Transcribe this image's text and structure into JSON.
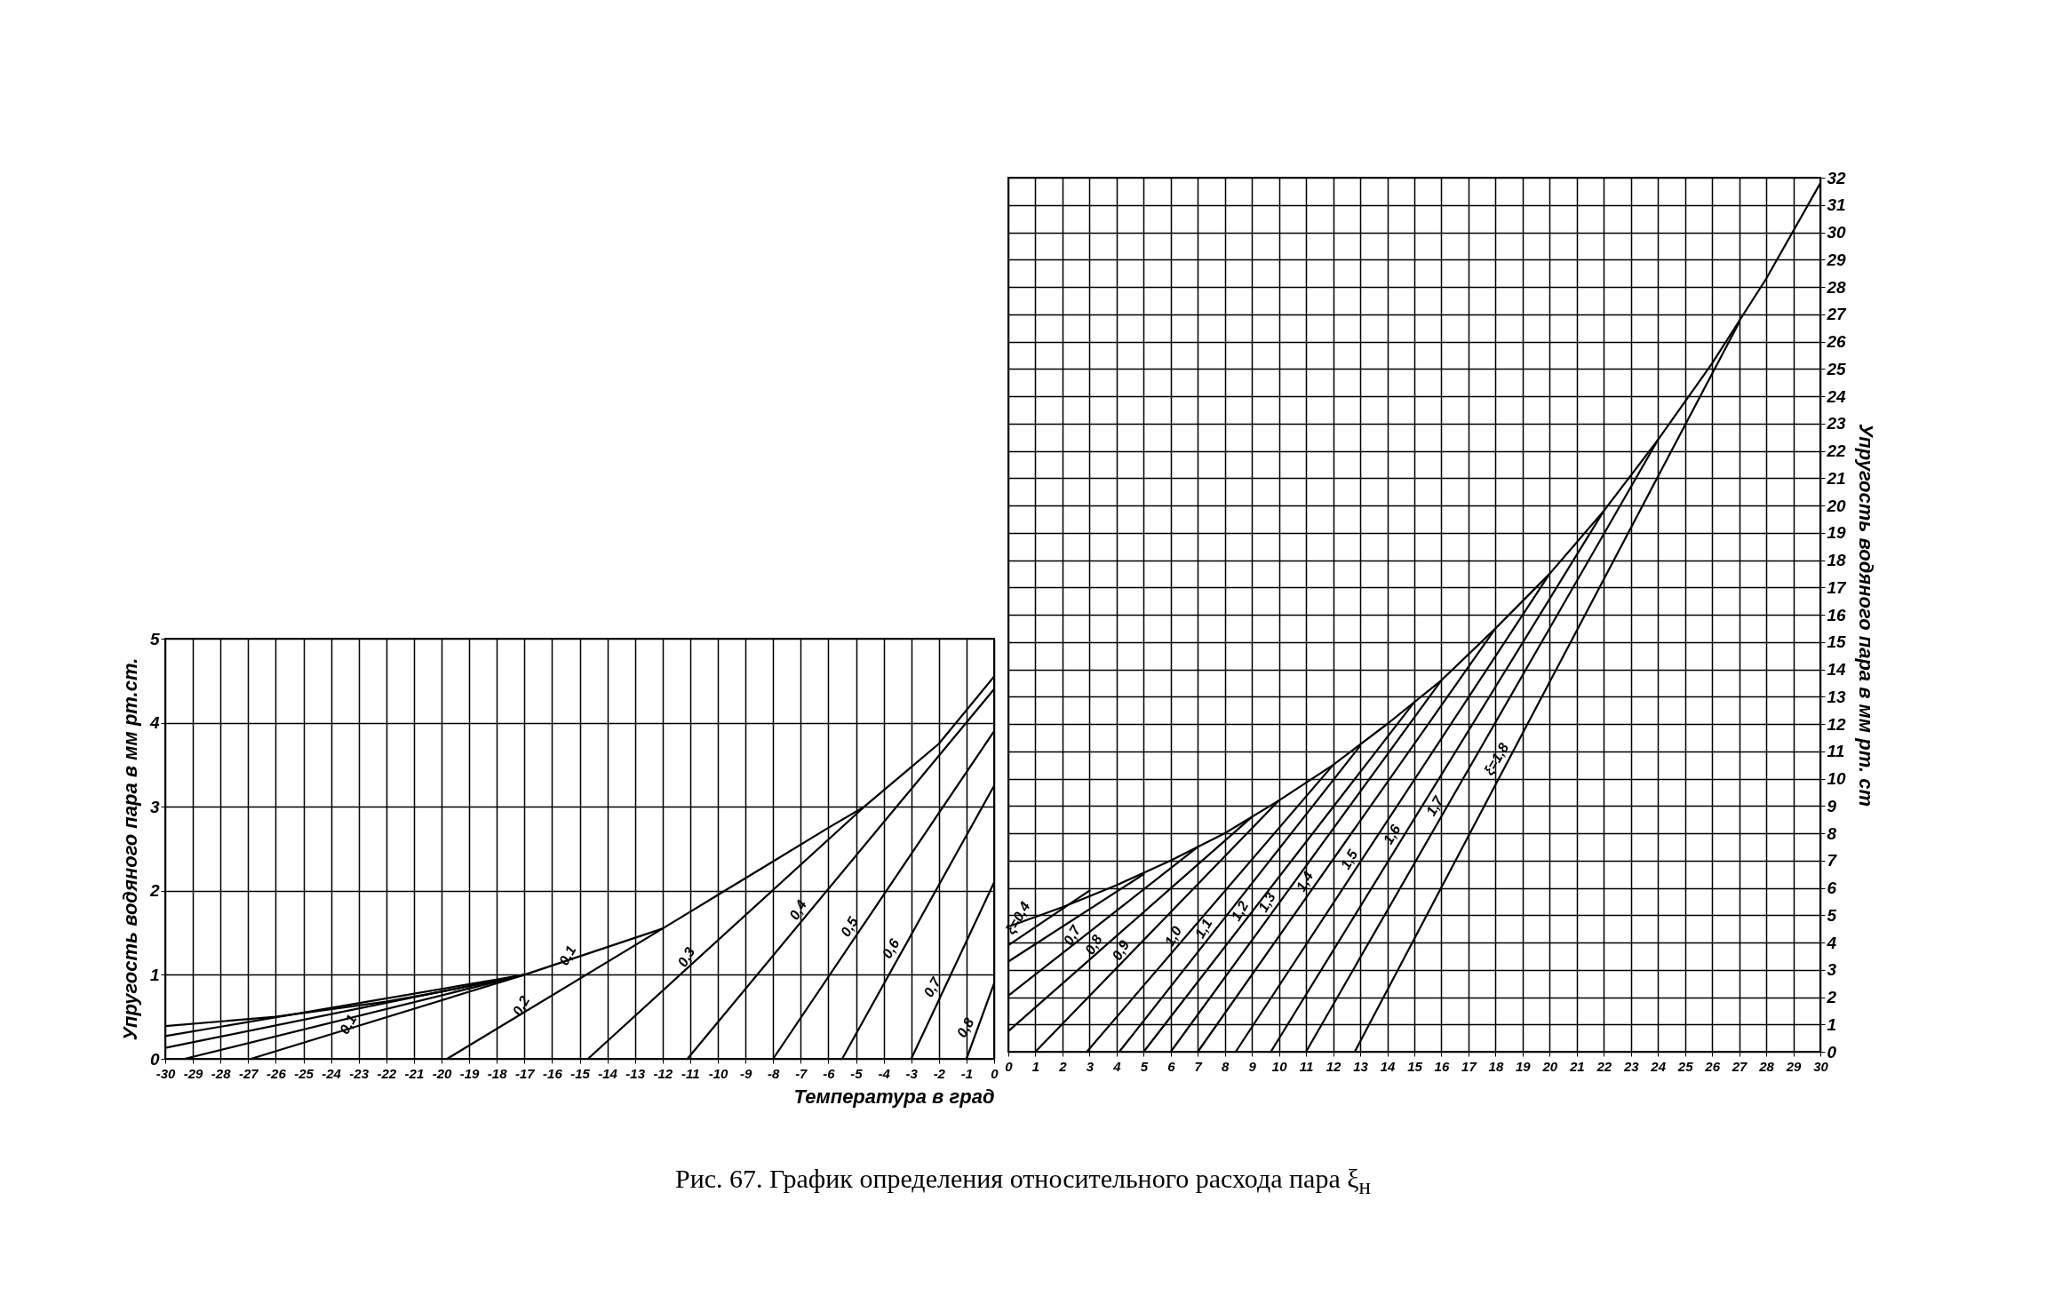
{
  "chart_data": [
    {
      "type": "line",
      "xlabel": "Температура в град",
      "ylabel": "Упругость водяного пара в мм рт.ст.",
      "xlim": [
        -30,
        0
      ],
      "ylim": [
        0,
        5
      ],
      "xticks": [
        -30,
        -29,
        -28,
        -27,
        -26,
        -25,
        -24,
        -23,
        -22,
        -21,
        -20,
        -19,
        -18,
        -17,
        -16,
        -15,
        -14,
        -13,
        -12,
        -11,
        -10,
        -9,
        -8,
        -7,
        -6,
        -5,
        -4,
        -3,
        -2,
        -1,
        0
      ],
      "yticks": [
        0,
        1,
        2,
        3,
        4,
        5
      ],
      "grid": true,
      "series": [
        {
          "name": "0,1",
          "color": "#000000",
          "x": [
            -17,
            -12,
            -10,
            -8,
            -6,
            -4.7,
            -2,
            0,
            -30,
            -26,
            -22,
            -20
          ],
          "values": [
            1.0,
            1.55,
            1.95,
            2.35,
            2.75,
            3.0,
            3.75,
            4.55,
            0.39,
            0.5,
            0.68,
            0.8
          ]
        },
        {
          "color": "#000000",
          "x": [
            -30,
            -17
          ],
          "values": [
            0.27,
            1.0
          ]
        },
        {
          "color": "#000000",
          "x": [
            -30,
            -17
          ],
          "values": [
            0.13,
            1.0
          ]
        },
        {
          "color": "#000000",
          "x": [
            -29.3,
            -17
          ],
          "values": [
            0,
            1.0
          ]
        },
        {
          "name": "0,1",
          "color": "#000000",
          "x": [
            -26.9,
            -17
          ],
          "values": [
            0,
            1.0
          ]
        },
        {
          "name": "0,2",
          "color": "#000000",
          "x": [
            -19.8,
            -12
          ],
          "values": [
            0,
            1.55
          ]
        },
        {
          "name": "0,3",
          "color": "#000000",
          "x": [
            -14.7,
            -4.7
          ],
          "values": [
            0,
            3.0
          ]
        },
        {
          "name": "0,4",
          "color": "#000000",
          "x": [
            -11.1,
            0
          ],
          "values": [
            0,
            4.4
          ]
        },
        {
          "name": "0,5",
          "color": "#000000",
          "x": [
            -8.0,
            0
          ],
          "values": [
            0,
            3.9
          ]
        },
        {
          "name": "0,6",
          "color": "#000000",
          "x": [
            -5.5,
            0
          ],
          "values": [
            0,
            3.25
          ]
        },
        {
          "name": "0,7",
          "color": "#000000",
          "x": [
            -3.0,
            0
          ],
          "values": [
            0,
            2.1
          ]
        },
        {
          "name": "0,8",
          "color": "#000000",
          "x": [
            -1.0,
            0
          ],
          "values": [
            0,
            0.9
          ]
        }
      ],
      "annotations": [
        "Рис. 67. График определения относительного расхода пара ξ$_{н}$"
      ]
    },
    {
      "type": "line",
      "ylabel": "Упругость водяного пара в мм рт. ст",
      "xlim": [
        0,
        30
      ],
      "ylim": [
        0,
        32
      ],
      "xticks": [
        0,
        1,
        2,
        3,
        4,
        5,
        6,
        7,
        8,
        9,
        10,
        11,
        12,
        13,
        14,
        15,
        16,
        17,
        18,
        19,
        20,
        21,
        22,
        23,
        24,
        25,
        26,
        27,
        28,
        29,
        30
      ],
      "yticks": [
        0,
        1,
        2,
        3,
        4,
        5,
        6,
        7,
        8,
        9,
        10,
        11,
        12,
        13,
        14,
        15,
        16,
        17,
        18,
        19,
        20,
        21,
        22,
        23,
        24,
        25,
        26,
        27,
        28,
        29,
        30,
        31,
        32
      ],
      "grid": true,
      "series": [
        {
          "name": "ξ=0,4",
          "color": "#000000",
          "x": [
            0,
            2,
            4,
            6,
            8,
            10,
            12,
            14,
            16,
            18,
            20,
            22,
            24,
            26,
            28,
            30
          ],
          "values": [
            4.58,
            5.29,
            6.1,
            7.0,
            8.0,
            9.2,
            10.5,
            12.0,
            13.6,
            15.5,
            17.5,
            19.8,
            22.4,
            25.2,
            28.3,
            31.8
          ]
        },
        {
          "color": "#000000",
          "x": [
            0,
            3
          ],
          "values": [
            3.9,
            5.9
          ]
        },
        {
          "color": "#000000",
          "x": [
            0,
            5
          ],
          "values": [
            3.3,
            6.5
          ]
        },
        {
          "name": "0,7",
          "color": "#000000",
          "x": [
            0,
            7
          ],
          "values": [
            2.05,
            7.5
          ]
        },
        {
          "name": "0,8",
          "color": "#000000",
          "x": [
            0,
            9
          ],
          "values": [
            0.75,
            8.6
          ]
        },
        {
          "name": "0,9",
          "color": "#000000",
          "x": [
            1.0,
            10
          ],
          "values": [
            0,
            9.2
          ]
        },
        {
          "name": "1,0",
          "color": "#000000",
          "x": [
            2.9,
            12
          ],
          "values": [
            0,
            10.5
          ]
        },
        {
          "name": "1,1",
          "color": "#000000",
          "x": [
            4.1,
            13
          ],
          "values": [
            0,
            11.2
          ]
        },
        {
          "name": "1,2",
          "color": "#000000",
          "x": [
            5.0,
            15
          ],
          "values": [
            0,
            12.8
          ]
        },
        {
          "name": "1,3",
          "color": "#000000",
          "x": [
            6.0,
            16
          ],
          "values": [
            0,
            13.6
          ]
        },
        {
          "name": "1,4",
          "color": "#000000",
          "x": [
            7.0,
            18
          ],
          "values": [
            0,
            15.5
          ]
        },
        {
          "name": "1,5",
          "color": "#000000",
          "x": [
            8.4,
            20
          ],
          "values": [
            0,
            17.5
          ]
        },
        {
          "name": "1,6",
          "color": "#000000",
          "x": [
            9.7,
            22
          ],
          "values": [
            0,
            19.8
          ]
        },
        {
          "name": "1,7",
          "color": "#000000",
          "x": [
            11.0,
            24
          ],
          "values": [
            0,
            22.4
          ]
        },
        {
          "name": "ξ=1,8",
          "color": "#000000",
          "x": [
            12.8,
            27
          ],
          "values": [
            0,
            26.7
          ]
        }
      ]
    }
  ]
}
